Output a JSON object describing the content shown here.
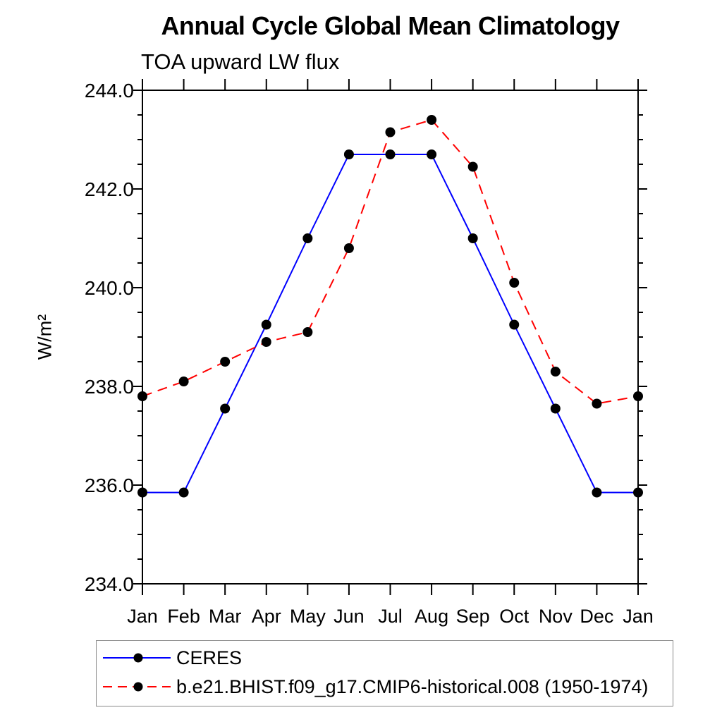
{
  "figure": {
    "title": "Annual Cycle Global Mean Climatology",
    "subtitle": "TOA upward LW flux"
  },
  "chart_data": {
    "type": "line",
    "title": "Annual Cycle Global Mean Climatology",
    "subtitle": "TOA upward LW flux",
    "xlabel": "",
    "ylabel": "W/m²",
    "categories": [
      "Jan",
      "Feb",
      "Mar",
      "Apr",
      "May",
      "Jun",
      "Jul",
      "Aug",
      "Sep",
      "Oct",
      "Nov",
      "Dec",
      "Jan"
    ],
    "ylim": [
      234.0,
      244.0
    ],
    "yticks": [
      {
        "value": 234.0,
        "label": "234.0"
      },
      {
        "value": 236.0,
        "label": "236.0"
      },
      {
        "value": 238.0,
        "label": "238.0"
      },
      {
        "value": 240.0,
        "label": "240.0"
      },
      {
        "value": 242.0,
        "label": "242.0"
      },
      {
        "value": 244.0,
        "label": "244.0"
      }
    ],
    "ytick_minor_step": 0.5,
    "grid": false,
    "legend_position": "bottom-left",
    "axis_color": "#000000",
    "marker_color": "#000000",
    "series": [
      {
        "name": "CERES",
        "color": "#0000ff",
        "line_style": "solid",
        "values": [
          235.85,
          235.85,
          237.55,
          239.25,
          241.0,
          242.7,
          242.7,
          242.7,
          241.0,
          239.25,
          237.55,
          235.85,
          235.85
        ]
      },
      {
        "name": "b.e21.BHIST.f09_g17.CMIP6-historical.008 (1950-1974)",
        "color": "#ff0000",
        "line_style": "dashed",
        "values": [
          237.8,
          238.1,
          238.5,
          238.9,
          239.1,
          240.8,
          243.15,
          243.4,
          242.45,
          240.1,
          238.3,
          237.65,
          237.8
        ]
      }
    ]
  }
}
